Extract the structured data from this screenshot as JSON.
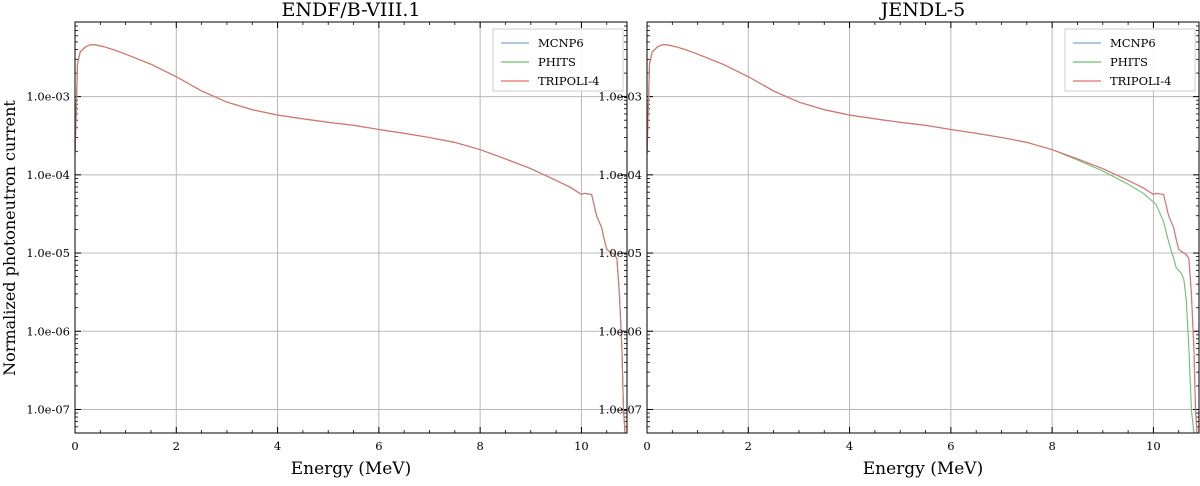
{
  "ylabel": "Normalized photoneutron current",
  "chart_data": [
    {
      "type": "line",
      "title": "ENDF/B-VIII.1",
      "xlabel": "Energy (MeV)",
      "ylabel": "Normalized photoneutron current",
      "xlim": [
        0,
        10.9
      ],
      "ylim": [
        5e-08,
        0.009
      ],
      "yscale": "log",
      "grid": true,
      "legend_position": "top-right",
      "xticks": [
        "0",
        "2",
        "4",
        "6",
        "8",
        "10"
      ],
      "yticks": [
        "1.0e-03",
        "1.0e-04",
        "1.0e-05",
        "1.0e-06",
        "1.0e-07"
      ],
      "x": [
        0.0,
        0.05,
        0.1,
        0.2,
        0.3,
        0.4,
        0.6,
        0.8,
        1.0,
        1.5,
        2.0,
        2.5,
        3.0,
        3.5,
        4.0,
        4.5,
        5.0,
        5.5,
        6.0,
        6.5,
        7.0,
        7.5,
        8.0,
        8.5,
        9.0,
        9.5,
        9.8,
        10.0,
        10.05,
        10.2,
        10.3,
        10.4,
        10.45,
        10.5,
        10.55,
        10.6,
        10.65,
        10.7,
        10.75,
        10.8,
        10.83,
        10.86
      ],
      "series": [
        {
          "name": "MCNP6",
          "color": "#7fa6c9",
          "values": [
            0.00018,
            0.0026,
            0.0037,
            0.0043,
            0.0046,
            0.0046,
            0.0043,
            0.0039,
            0.0035,
            0.0026,
            0.0018,
            0.00118,
            0.00085,
            0.00068,
            0.00058,
            0.00052,
            0.00047,
            0.00043,
            0.00038,
            0.00034,
            0.0003,
            0.00026,
            0.00021,
            0.00016,
            0.00012,
            8.5e-05,
            6.8e-05,
            5.6e-05,
            5.8e-05,
            5.6e-05,
            3e-05,
            2.1e-05,
            1.5e-05,
            1.12e-05,
            1.05e-05,
            1e-05,
            9.6e-06,
            8.5e-06,
            3e-06,
            6e-07,
            1e-07,
            5e-08
          ]
        },
        {
          "name": "PHITS",
          "color": "#6cbf6c",
          "values": [
            0.00018,
            0.0026,
            0.0037,
            0.0043,
            0.0046,
            0.0046,
            0.0043,
            0.0039,
            0.0035,
            0.0026,
            0.0018,
            0.00118,
            0.00085,
            0.00068,
            0.00058,
            0.00052,
            0.00047,
            0.00043,
            0.00038,
            0.00034,
            0.0003,
            0.00026,
            0.00021,
            0.00016,
            0.00012,
            8.5e-05,
            6.8e-05,
            5.6e-05,
            5.8e-05,
            5.6e-05,
            3e-05,
            2.1e-05,
            1.5e-05,
            1.12e-05,
            1.05e-05,
            1e-05,
            9.6e-06,
            8.5e-06,
            3e-06,
            6e-07,
            1e-07,
            5e-08
          ]
        },
        {
          "name": "TRIPOLI-4",
          "color": "#e46f6f",
          "values": [
            0.00018,
            0.0026,
            0.0037,
            0.0043,
            0.0046,
            0.0046,
            0.0043,
            0.0039,
            0.0035,
            0.0026,
            0.0018,
            0.00118,
            0.00085,
            0.00068,
            0.00058,
            0.00052,
            0.00047,
            0.00043,
            0.00038,
            0.00034,
            0.0003,
            0.00026,
            0.00021,
            0.00016,
            0.00012,
            8.5e-05,
            6.8e-05,
            5.6e-05,
            5.8e-05,
            5.6e-05,
            3e-05,
            2.1e-05,
            1.5e-05,
            1.12e-05,
            1.05e-05,
            1e-05,
            9.6e-06,
            8.5e-06,
            3e-06,
            6e-07,
            1e-07,
            5e-08
          ]
        }
      ]
    },
    {
      "type": "line",
      "title": "JENDL-5",
      "xlabel": "Energy (MeV)",
      "ylabel": "",
      "xlim": [
        0,
        10.9
      ],
      "ylim": [
        5e-08,
        0.009
      ],
      "yscale": "log",
      "grid": true,
      "legend_position": "top-right",
      "xticks": [
        "0",
        "2",
        "4",
        "6",
        "8",
        "10"
      ],
      "yticks": [
        "1.0e-03",
        "1.0e-04",
        "1.0e-05",
        "1.0e-06",
        "1.0e-07"
      ],
      "x": [
        0.0,
        0.05,
        0.1,
        0.2,
        0.3,
        0.4,
        0.6,
        0.8,
        1.0,
        1.5,
        2.0,
        2.5,
        3.0,
        3.5,
        4.0,
        4.5,
        5.0,
        5.5,
        6.0,
        6.5,
        7.0,
        7.5,
        8.0,
        8.5,
        9.0,
        9.5,
        9.8,
        10.0,
        10.05,
        10.2,
        10.3,
        10.4,
        10.45,
        10.5,
        10.55,
        10.6,
        10.65,
        10.7,
        10.75,
        10.8,
        10.83,
        10.86
      ],
      "series": [
        {
          "name": "MCNP6",
          "color": "#7fa6c9",
          "values": [
            0.00018,
            0.0026,
            0.0037,
            0.0043,
            0.0046,
            0.0046,
            0.0043,
            0.0039,
            0.0035,
            0.0026,
            0.0018,
            0.00118,
            0.00085,
            0.00068,
            0.00058,
            0.00052,
            0.00047,
            0.00043,
            0.00038,
            0.00034,
            0.0003,
            0.00026,
            0.00021,
            0.00016,
            0.00012,
            8.5e-05,
            6.8e-05,
            5.6e-05,
            5.8e-05,
            5.6e-05,
            3e-05,
            2.1e-05,
            1.5e-05,
            1.12e-05,
            1.05e-05,
            1e-05,
            9.6e-06,
            8.5e-06,
            3e-06,
            6e-07,
            1e-07,
            5e-08
          ]
        },
        {
          "name": "PHITS",
          "color": "#6cbf6c",
          "values": [
            0.00018,
            0.0026,
            0.0037,
            0.0043,
            0.0046,
            0.0046,
            0.0043,
            0.0039,
            0.0035,
            0.0026,
            0.0018,
            0.00118,
            0.00085,
            0.00068,
            0.00058,
            0.00052,
            0.00047,
            0.00043,
            0.00038,
            0.00034,
            0.0003,
            0.00026,
            0.00021,
            0.000155,
            0.000112,
            7.6e-05,
            5.8e-05,
            4.5e-05,
            4.2e-05,
            2.5e-05,
            1.4e-05,
            8.5e-06,
            6.5e-06,
            6e-06,
            5.5e-06,
            4.6e-06,
            2.5e-06,
            6e-07,
            1e-07,
            5e-08,
            5e-08,
            5e-08
          ]
        },
        {
          "name": "TRIPOLI-4",
          "color": "#e46f6f",
          "values": [
            0.00018,
            0.0026,
            0.0037,
            0.0043,
            0.0046,
            0.0046,
            0.0043,
            0.0039,
            0.0035,
            0.0026,
            0.0018,
            0.00118,
            0.00085,
            0.00068,
            0.00058,
            0.00052,
            0.00047,
            0.00043,
            0.00038,
            0.00034,
            0.0003,
            0.00026,
            0.00021,
            0.00016,
            0.00012,
            8.5e-05,
            6.8e-05,
            5.6e-05,
            5.8e-05,
            5.6e-05,
            3e-05,
            2.1e-05,
            1.5e-05,
            1.12e-05,
            1.05e-05,
            1e-05,
            9.6e-06,
            8.5e-06,
            3e-06,
            6e-07,
            1e-07,
            5e-08
          ]
        }
      ]
    }
  ]
}
